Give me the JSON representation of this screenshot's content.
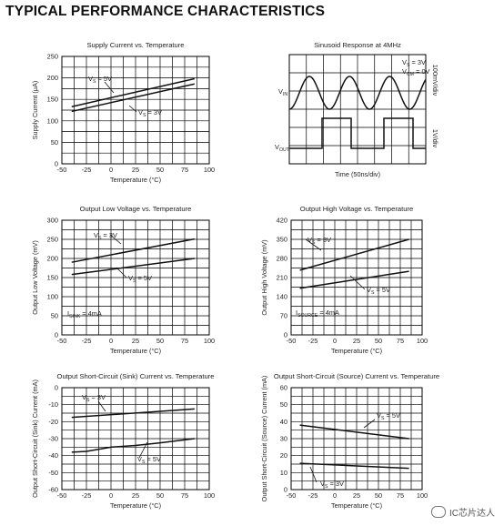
{
  "page": {
    "title": "TYPICAL PERFORMANCE CHARACTERISTICS"
  },
  "watermark": {
    "text": "IC芯片达人"
  },
  "chart_data": [
    {
      "id": "c1",
      "type": "line",
      "title": "Supply Current vs. Temperature",
      "xlabel": "Temperature (°C)",
      "ylabel": "Supply Current (μA)",
      "xlim": [
        -50,
        100
      ],
      "ylim": [
        0,
        250
      ],
      "xticks": [
        "-50",
        "-25",
        "0",
        "25",
        "50",
        "75",
        "100"
      ],
      "yticks": [
        "0",
        "50",
        "100",
        "150",
        "200",
        "250"
      ],
      "grid": true,
      "series": [
        {
          "name": "VS = 5V",
          "x": [
            -40,
            85
          ],
          "y": [
            133,
            198
          ]
        },
        {
          "name": "VS = 3V",
          "x": [
            -40,
            85
          ],
          "y": [
            122,
            186
          ]
        }
      ],
      "annotations": [
        {
          "main": "V",
          "sub": "S",
          "rest": " = 5V"
        },
        {
          "main": "V",
          "sub": "S",
          "rest": " = 3V"
        }
      ]
    },
    {
      "id": "c2",
      "type": "line",
      "title": "Sinusoid Response at 4MHz",
      "xlabel": "Time (50ns/div)",
      "ylabel": "",
      "grid": true,
      "divisions_x": 8,
      "divisions_y": 6,
      "right_labels": [
        "100mV/div",
        "1V/div"
      ],
      "series": [
        {
          "name": "VIN",
          "type": "sine",
          "cycles": 3.4
        },
        {
          "name": "VOUT",
          "type": "square"
        }
      ],
      "annotations": [
        {
          "main": "V",
          "sub": "S",
          "rest": " = 3V"
        },
        {
          "main": "V",
          "sub": "CM",
          "rest": " = 0V"
        },
        {
          "main": "V",
          "sub": "IN",
          "rest": ""
        },
        {
          "main": "V",
          "sub": "OUT",
          "rest": ""
        }
      ]
    },
    {
      "id": "c3",
      "type": "line",
      "title": "Output Low Voltage vs. Temperature",
      "xlabel": "Temperature (°C)",
      "ylabel": "Output Low Voltage (mV)",
      "xlim": [
        -50,
        100
      ],
      "ylim": [
        0,
        300
      ],
      "xticks": [
        "-50",
        "-25",
        "0",
        "25",
        "50",
        "75",
        "100"
      ],
      "yticks": [
        "0",
        "50",
        "100",
        "150",
        "200",
        "250",
        "300"
      ],
      "grid": true,
      "series": [
        {
          "name": "VS = 3V",
          "x": [
            -40,
            85
          ],
          "y": [
            190,
            251
          ]
        },
        {
          "name": "VS = 5V",
          "x": [
            -40,
            85
          ],
          "y": [
            158,
            200
          ]
        }
      ],
      "annotations": [
        {
          "main": "V",
          "sub": "S",
          "rest": " = 3V"
        },
        {
          "main": "V",
          "sub": "S",
          "rest": " = 5V"
        },
        {
          "main": "I",
          "sub": "SINK",
          "rest": " = 4mA"
        }
      ]
    },
    {
      "id": "c4",
      "type": "line",
      "title": "Output High Voltage vs. Temperature",
      "xlabel": "Temperature (°C)",
      "ylabel": "Output High Voltage (mV)",
      "xlim": [
        -50,
        100
      ],
      "ylim": [
        0,
        420
      ],
      "xticks": [
        "-50",
        "-25",
        "0",
        "25",
        "50",
        "75",
        "100"
      ],
      "yticks": [
        "0",
        "70",
        "140",
        "210",
        "280",
        "350",
        "420"
      ],
      "grid": true,
      "series": [
        {
          "name": "VS = 3V",
          "x": [
            -40,
            85
          ],
          "y": [
            237,
            350
          ]
        },
        {
          "name": "VS = 5V",
          "x": [
            -40,
            85
          ],
          "y": [
            171,
            233
          ]
        }
      ],
      "annotations": [
        {
          "main": "V",
          "sub": "S",
          "rest": " = 3V"
        },
        {
          "main": "V",
          "sub": "S",
          "rest": " = 5V"
        },
        {
          "main": "I",
          "sub": "SOURCE",
          "rest": " = 4mA"
        }
      ]
    },
    {
      "id": "c5",
      "type": "line",
      "title": "Output Short-Circuit (Sink) Current vs. Temperature",
      "xlabel": "Temperature (°C)",
      "ylabel": "Output Short-Circuit (Sink) Current (mA)",
      "xlim": [
        -50,
        100
      ],
      "ylim": [
        -60,
        0
      ],
      "xticks": [
        "-50",
        "-25",
        "0",
        "25",
        "50",
        "75",
        "100"
      ],
      "yticks": [
        "-60",
        "-50",
        "-40",
        "-30",
        "-20",
        "-10",
        "0"
      ],
      "grid": true,
      "series": [
        {
          "name": "VS = 3V",
          "x": [
            -40,
            85
          ],
          "y": [
            -17.5,
            -12.5
          ]
        },
        {
          "name": "VS = 5V",
          "x": [
            -40,
            -25,
            0,
            25,
            50,
            85
          ],
          "y": [
            -38,
            -37.5,
            -35,
            -34,
            -32.5,
            -30
          ]
        }
      ],
      "annotations": [
        {
          "main": "V",
          "sub": "S",
          "rest": " = 3V"
        },
        {
          "main": "V",
          "sub": "S",
          "rest": " = 5V"
        }
      ]
    },
    {
      "id": "c6",
      "type": "line",
      "title": "Output Short-Circuit (Source) Current vs. Temperature",
      "xlabel": "Temperature (°C)",
      "ylabel": "Output Short-Circuit (Source) Current (mA)",
      "xlim": [
        -50,
        100
      ],
      "ylim": [
        0,
        60
      ],
      "xticks": [
        "-50",
        "-25",
        "0",
        "25",
        "50",
        "75",
        "100"
      ],
      "yticks": [
        "0",
        "10",
        "20",
        "30",
        "40",
        "50",
        "60"
      ],
      "grid": true,
      "series": [
        {
          "name": "VS = 5V",
          "x": [
            -40,
            85
          ],
          "y": [
            38,
            30
          ]
        },
        {
          "name": "VS = 3V",
          "x": [
            -40,
            85
          ],
          "y": [
            15.5,
            12.5
          ]
        }
      ],
      "annotations": [
        {
          "main": "V",
          "sub": "S",
          "rest": " = 5V"
        },
        {
          "main": "V",
          "sub": "S",
          "rest": " = 3V"
        }
      ]
    }
  ]
}
